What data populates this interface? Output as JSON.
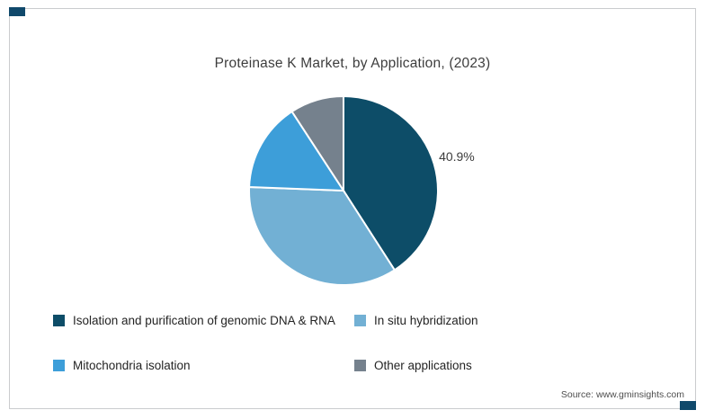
{
  "theme": {
    "accent": "#10496b",
    "border": "#caccce",
    "background": "#ffffff"
  },
  "source": "Source: www.gminsights.com",
  "chart_data": {
    "type": "pie",
    "title": "Proteinase K Market, by Application, (2023)",
    "labels": [
      "Isolation and purification of genomic DNA & RNA",
      "In situ hybridization",
      "Mitochondria isolation",
      "Other applications"
    ],
    "values": [
      40.9,
      34.7,
      15.2,
      9.2
    ],
    "colors": [
      "#0d4d68",
      "#72b0d4",
      "#3d9ed9",
      "#75818d"
    ],
    "data_labels": [
      "40.9%",
      "",
      "",
      ""
    ],
    "values_are_percent": true,
    "start_angle_deg": -90,
    "direction": "clockwise",
    "legend_position": "bottom",
    "grid": false
  }
}
